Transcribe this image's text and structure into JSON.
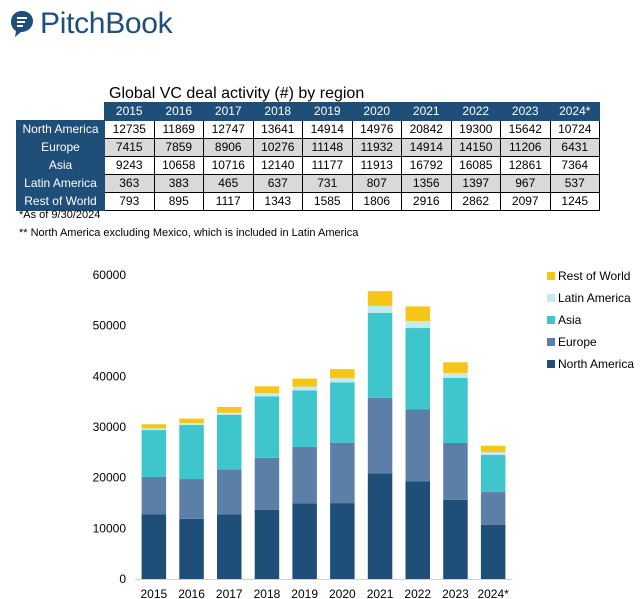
{
  "brand": {
    "name": "PitchBook",
    "color": "#1f4e79"
  },
  "table": {
    "title": "Global VC deal activity (#) by region",
    "years": [
      "2015",
      "2016",
      "2017",
      "2018",
      "2019",
      "2020",
      "2021",
      "2022",
      "2023",
      "2024*"
    ],
    "rows": [
      {
        "region": "North America",
        "values": [
          "12735",
          "11869",
          "12747",
          "13641",
          "14914",
          "14976",
          "20842",
          "19300",
          "15642",
          "10724"
        ]
      },
      {
        "region": "Europe",
        "values": [
          "7415",
          "7859",
          "8906",
          "10276",
          "11148",
          "11932",
          "14914",
          "14150",
          "11206",
          "6431"
        ]
      },
      {
        "region": "Asia",
        "values": [
          "9243",
          "10658",
          "10716",
          "12140",
          "11177",
          "11913",
          "16792",
          "16085",
          "12861",
          "7364"
        ]
      },
      {
        "region": "Latin America",
        "values": [
          "363",
          "383",
          "465",
          "637",
          "731",
          "807",
          "1356",
          "1397",
          "967",
          "537"
        ]
      },
      {
        "region": "Rest of World",
        "values": [
          "793",
          "895",
          "1117",
          "1343",
          "1585",
          "1806",
          "2916",
          "2862",
          "2097",
          "1245"
        ]
      }
    ]
  },
  "notes": {
    "asof": "*As of 9/30/2024",
    "na": "** North America excluding Mexico, which is included in Latin America"
  },
  "chart_data": {
    "type": "bar",
    "stacked": true,
    "categories": [
      "2015",
      "2016",
      "2017",
      "2018",
      "2019",
      "2020",
      "2021",
      "2022",
      "2023",
      "2024*"
    ],
    "series": [
      {
        "name": "North America",
        "color": "#1f4e79",
        "values": [
          12735,
          11869,
          12747,
          13641,
          14914,
          14976,
          20842,
          19300,
          15642,
          10724
        ]
      },
      {
        "name": "Europe",
        "color": "#5b7fa6",
        "values": [
          7415,
          7859,
          8906,
          10276,
          11148,
          11932,
          14914,
          14150,
          11206,
          6431
        ]
      },
      {
        "name": "Asia",
        "color": "#3ec6cc",
        "values": [
          9243,
          10658,
          10716,
          12140,
          11177,
          11913,
          16792,
          16085,
          12861,
          7364
        ]
      },
      {
        "name": "Latin America",
        "color": "#c5ecec",
        "values": [
          363,
          383,
          465,
          637,
          731,
          807,
          1356,
          1397,
          967,
          537
        ]
      },
      {
        "name": "Rest of World",
        "color": "#f5c518",
        "values": [
          793,
          895,
          1117,
          1343,
          1585,
          1806,
          2916,
          2862,
          2097,
          1245
        ]
      }
    ],
    "ylim": [
      0,
      60000
    ],
    "yticks": [
      0,
      10000,
      20000,
      30000,
      40000,
      50000,
      60000
    ],
    "ytick_labels": [
      "0",
      "10000",
      "20000",
      "30000",
      "40000",
      "50000",
      "60000"
    ],
    "grid": false,
    "legend_position": "right",
    "legend_order": [
      "Rest of World",
      "Latin America",
      "Asia",
      "Europe",
      "North America"
    ]
  }
}
